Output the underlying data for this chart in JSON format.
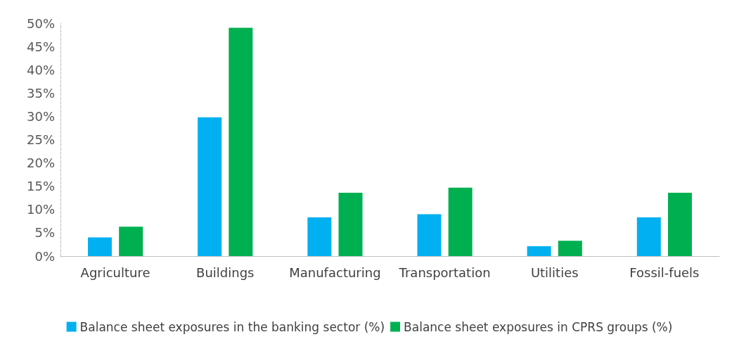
{
  "chart_data": {
    "type": "bar",
    "categories": [
      "Agriculture",
      "Buildings",
      "Manufacturing",
      "Transportation",
      "Utilities",
      "Fossil-fuels"
    ],
    "series": [
      {
        "name": "Balance sheet exposures in the banking sector (%)",
        "color": "#00b0f0",
        "values": [
          4.0,
          29.8,
          8.3,
          9.0,
          2.1,
          8.3
        ]
      },
      {
        "name": "Balance sheet exposures in CPRS groups (%)",
        "color": "#00b050",
        "values": [
          6.3,
          49.0,
          13.6,
          14.7,
          3.3,
          13.6
        ]
      }
    ],
    "ylim": [
      0,
      50
    ],
    "yticks": [
      {
        "value": 0,
        "label": "0%"
      },
      {
        "value": 5,
        "label": "5%"
      },
      {
        "value": 10,
        "label": "10%"
      },
      {
        "value": 15,
        "label": "15%"
      },
      {
        "value": 20,
        "label": "20%"
      },
      {
        "value": 25,
        "label": "25%"
      },
      {
        "value": 30,
        "label": "30%"
      },
      {
        "value": 35,
        "label": "35%"
      },
      {
        "value": 40,
        "label": "40%"
      },
      {
        "value": 45,
        "label": "45%"
      },
      {
        "value": 50,
        "label": "50%"
      }
    ],
    "grid": false,
    "legend": "bottom"
  }
}
